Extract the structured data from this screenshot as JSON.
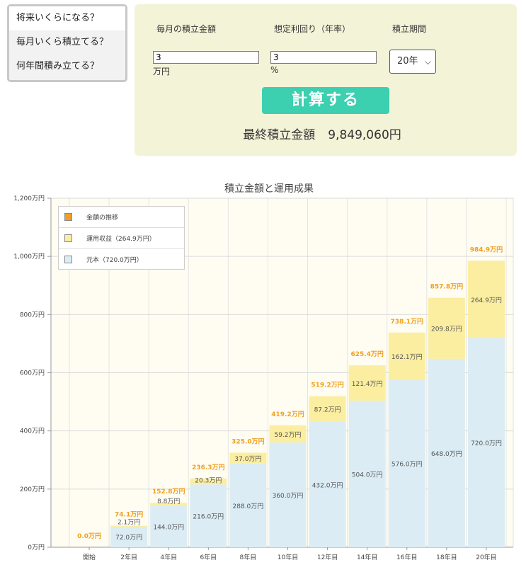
{
  "menu": {
    "items": [
      "将来いくらになる？",
      "毎月いくら積立てる？",
      "何年間積み立てる？"
    ]
  },
  "form": {
    "monthly_label": "毎月の積立金額",
    "rate_label": "想定利回り（年率）",
    "period_label": "積立期間",
    "monthly_value": "3",
    "monthly_unit": "万円",
    "rate_value": "3",
    "rate_unit": "%",
    "period_value": "20年",
    "calc_button": "計算する",
    "result_label": "最終積立金額",
    "result_value": "9,849,060円"
  },
  "chart_data": {
    "type": "bar",
    "stacked": true,
    "title": "積立金額と運用成果",
    "categories": [
      "開始",
      "2年目",
      "4年目",
      "6年目",
      "8年目",
      "10年目",
      "12年目",
      "14年目",
      "16年目",
      "18年目",
      "20年目"
    ],
    "series": [
      {
        "name": "元本（720.0万円）",
        "color": "#dbecf4",
        "values": [
          0,
          72.0,
          144.0,
          216.0,
          288.0,
          360.0,
          432.0,
          504.0,
          576.0,
          648.0,
          720.0
        ],
        "labels": [
          "",
          "72.0万円",
          "144.0万円",
          "216.0万円",
          "288.0万円",
          "360.0万円",
          "432.0万円",
          "504.0万円",
          "576.0万円",
          "648.0万円",
          "720.0万円"
        ]
      },
      {
        "name": "運用収益（264.9万円）",
        "color": "#fbeea0",
        "values": [
          0,
          2.1,
          8.8,
          20.3,
          37.0,
          59.2,
          87.2,
          121.4,
          162.1,
          209.8,
          264.9
        ],
        "labels": [
          "",
          "2.1万円",
          "8.8万円",
          "20.3万円",
          "37.0万円",
          "59.2万円",
          "87.2万円",
          "121.4万円",
          "162.1万円",
          "209.8万円",
          "264.9万円"
        ]
      }
    ],
    "totals": {
      "name": "金額の推移",
      "color": "#f0a020",
      "values": [
        0.0,
        74.1,
        152.8,
        236.3,
        325.0,
        419.2,
        519.2,
        625.4,
        738.1,
        857.8,
        984.9
      ],
      "labels": [
        "0.0万円",
        "74.1万円",
        "152.8万円",
        "236.3万円",
        "325.0万円",
        "419.2万円",
        "519.2万円",
        "625.4万円",
        "738.1万円",
        "857.8万円",
        "984.9万円"
      ]
    },
    "ylim": [
      0,
      1200
    ],
    "yticks": [
      0,
      200,
      400,
      600,
      800,
      1000,
      1200
    ],
    "yticklabels": [
      "0万円",
      "200万円",
      "400万円",
      "600万円",
      "800万円",
      "1,000万円",
      "1,200万円"
    ],
    "legend_position": "top-left",
    "grid": true
  }
}
